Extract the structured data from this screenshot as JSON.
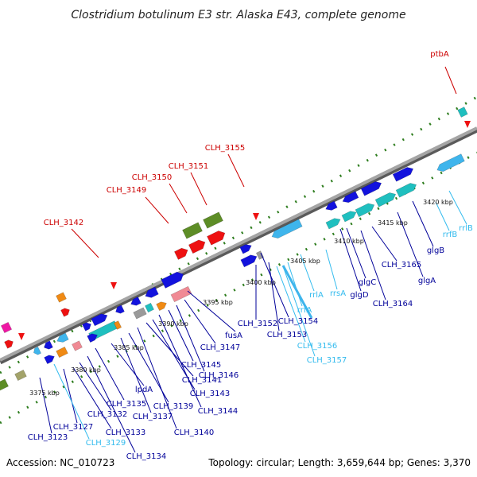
{
  "title": "Clostridium botulinum E3 str. Alaska E43, complete genome",
  "accession": "Accession: NC_010723",
  "topology": "Topology: circular; Length: 3,659,644 bp; Genes: 3,370",
  "colors": {
    "backbone": "#8f8f8f",
    "tick": "#2e7d1e",
    "gene_blue": "#1212dd",
    "gene_cyan": "#1fbfbf",
    "gene_lightblue": "#3fb5ec",
    "gene_green": "#5d8d26",
    "gene_red": "#ee1111",
    "gene_orange": "#f08a14",
    "gene_pink": "#f08a94",
    "gene_magenta": "#ef17a4",
    "gene_gray": "#9a9a9a",
    "gene_olive": "#a3a36a",
    "label_dark_red": "#cc0000",
    "label_dark_blue": "#000099",
    "label_light_blue": "#33bbee"
  },
  "kbp_labels": [
    "3375 kbp",
    "3380 kbp",
    "3385 kbp",
    "3390 kbp",
    "3395 kbp",
    "3400 kbp",
    "3405 kbp",
    "3410 kbp",
    "3415 kbp",
    "3420 kbp"
  ],
  "labels_top": [
    "ptbA",
    "CLH_3155",
    "CLH_3151",
    "CLH_3150",
    "CLH_3149",
    "CLH_3142"
  ],
  "labels_bottom_dark": [
    "CLH_3123",
    "CLH_3127",
    "CLH_3133",
    "CLH_3132",
    "CLH_3134",
    "CLH_3135",
    "lpdA",
    "CLH_3137",
    "CLH_3139",
    "CLH_3140",
    "CLH_3141",
    "CLH_3143",
    "CLH_3144",
    "CLH_3145",
    "CLH_3146",
    "CLH_3147",
    "fusA",
    "CLH_3152",
    "CLH_3153",
    "CLH_3154",
    "glgD",
    "glgC",
    "CLH_3164",
    "CLH_3165",
    "glgA",
    "glgB"
  ],
  "labels_bottom_light": [
    "CLH_3129",
    "CLH_3156",
    "CLH_3157",
    "rrfA",
    "rrlA",
    "rrsA",
    "rrfB",
    "rrlB"
  ]
}
